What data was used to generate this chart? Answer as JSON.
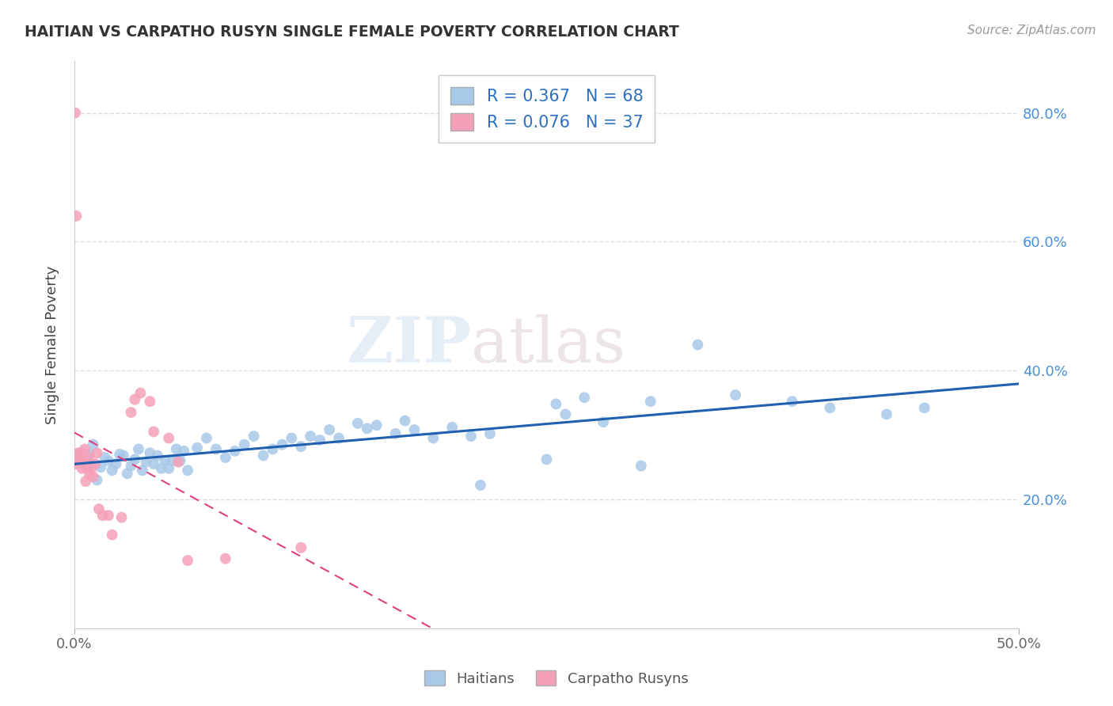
{
  "title": "HAITIAN VS CARPATHO RUSYN SINGLE FEMALE POVERTY CORRELATION CHART",
  "source": "Source: ZipAtlas.com",
  "ylabel": "Single Female Poverty",
  "xlim": [
    0.0,
    0.5
  ],
  "ylim": [
    0.0,
    0.88
  ],
  "xtick_vals": [
    0.0,
    0.5
  ],
  "xtick_labels": [
    "0.0%",
    "50.0%"
  ],
  "ytick_vals_right": [
    0.2,
    0.4,
    0.6,
    0.8
  ],
  "ytick_labels_right": [
    "20.0%",
    "40.0%",
    "60.0%",
    "80.0%"
  ],
  "haitian_color": "#A8C8E8",
  "carpatho_color": "#F4A0B8",
  "haitian_line_color": "#2060B0",
  "carpatho_line_color": "#E04080",
  "R_haitian": 0.367,
  "N_haitian": 68,
  "R_carpatho": 0.076,
  "N_carpatho": 37,
  "legend_label_haitian": "Haitians",
  "legend_label_carpatho": "Carpatho Rusyns",
  "watermark_zip": "ZIP",
  "watermark_atlas": "atlas",
  "background_color": "#FFFFFF",
  "grid_color": "#DDDDDD",
  "haitian_x": [
    0.004,
    0.008,
    0.01,
    0.012,
    0.014,
    0.016,
    0.018,
    0.02,
    0.022,
    0.024,
    0.026,
    0.028,
    0.03,
    0.032,
    0.034,
    0.036,
    0.038,
    0.04,
    0.042,
    0.044,
    0.046,
    0.048,
    0.05,
    0.052,
    0.054,
    0.056,
    0.058,
    0.06,
    0.065,
    0.07,
    0.075,
    0.08,
    0.085,
    0.09,
    0.095,
    0.1,
    0.105,
    0.11,
    0.115,
    0.12,
    0.125,
    0.13,
    0.135,
    0.14,
    0.15,
    0.155,
    0.16,
    0.17,
    0.175,
    0.18,
    0.19,
    0.2,
    0.21,
    0.215,
    0.22,
    0.25,
    0.255,
    0.26,
    0.27,
    0.28,
    0.3,
    0.305,
    0.33,
    0.35,
    0.38,
    0.4,
    0.43,
    0.45
  ],
  "haitian_y": [
    0.255,
    0.27,
    0.285,
    0.23,
    0.25,
    0.265,
    0.26,
    0.245,
    0.255,
    0.27,
    0.268,
    0.24,
    0.252,
    0.262,
    0.278,
    0.245,
    0.258,
    0.272,
    0.255,
    0.268,
    0.248,
    0.26,
    0.248,
    0.26,
    0.278,
    0.26,
    0.275,
    0.245,
    0.28,
    0.295,
    0.278,
    0.265,
    0.275,
    0.285,
    0.298,
    0.268,
    0.278,
    0.285,
    0.295,
    0.282,
    0.298,
    0.292,
    0.308,
    0.295,
    0.318,
    0.31,
    0.315,
    0.302,
    0.322,
    0.308,
    0.295,
    0.312,
    0.298,
    0.222,
    0.302,
    0.262,
    0.348,
    0.332,
    0.358,
    0.32,
    0.252,
    0.352,
    0.44,
    0.362,
    0.352,
    0.342,
    0.332,
    0.342
  ],
  "carpatho_x": [
    0.0005,
    0.0008,
    0.001,
    0.0015,
    0.002,
    0.0025,
    0.003,
    0.0035,
    0.004,
    0.0045,
    0.005,
    0.0055,
    0.006,
    0.0065,
    0.007,
    0.0075,
    0.008,
    0.0085,
    0.009,
    0.01,
    0.011,
    0.012,
    0.013,
    0.015,
    0.018,
    0.02,
    0.025,
    0.03,
    0.032,
    0.035,
    0.04,
    0.042,
    0.05,
    0.055,
    0.06,
    0.08,
    0.12
  ],
  "carpatho_y": [
    0.8,
    0.255,
    0.64,
    0.262,
    0.272,
    0.268,
    0.258,
    0.272,
    0.248,
    0.262,
    0.258,
    0.278,
    0.228,
    0.252,
    0.248,
    0.265,
    0.238,
    0.255,
    0.248,
    0.235,
    0.255,
    0.272,
    0.185,
    0.175,
    0.175,
    0.145,
    0.172,
    0.335,
    0.355,
    0.365,
    0.352,
    0.305,
    0.295,
    0.258,
    0.105,
    0.108,
    0.125
  ]
}
